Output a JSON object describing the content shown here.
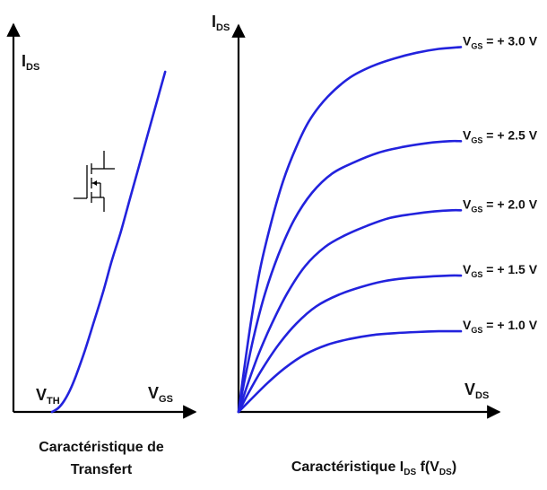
{
  "chart_data": [
    {
      "type": "line",
      "title": "Caractéristique de Transfert",
      "title_lines": [
        "Caractéristique de",
        "Transfert"
      ],
      "ylabel": {
        "main": "I",
        "sub": "DS"
      },
      "xlabel": {
        "main": "V",
        "sub": "GS"
      },
      "threshold_label": {
        "main": "V",
        "sub": "TH"
      },
      "icon": "mosfet-symbol-icon",
      "xlim": [
        0,
        10
      ],
      "ylim": [
        0,
        10
      ],
      "series": [
        {
          "x": [
            0,
            0.4,
            0.8,
            1.2,
            1.6,
            2.2,
            2.8,
            3.4,
            4.0,
            4.6,
            5.2,
            5.8,
            6.4,
            7.0,
            7.6
          ],
          "y": [
            0,
            0.1,
            0.3,
            0.6,
            1.0,
            1.7,
            2.5,
            3.3,
            4.2,
            5.0,
            5.9,
            6.8,
            7.7,
            8.6,
            9.5
          ],
          "color": "#2222dd"
        }
      ]
    },
    {
      "type": "line",
      "title": "",
      "caption": {
        "prefix": "Caractéristique I",
        "sub1": "DS",
        "mid": " f(V",
        "sub2": "DS",
        "suffix": ")"
      },
      "ylabel": {
        "main": "I",
        "sub": "DS"
      },
      "xlabel": {
        "main": "V",
        "sub": "DS"
      },
      "xlim": [
        0,
        10
      ],
      "ylim": [
        0,
        10
      ],
      "series": [
        {
          "name": "VGS = + 3.0 V",
          "label": {
            "main": "V",
            "sub": "GS",
            "text": " = + 3.0 V"
          },
          "color": "#2222dd",
          "x": [
            0,
            0.25,
            0.6,
            1.0,
            1.5,
            2.0,
            2.6,
            3.2,
            4.0,
            5.0,
            6.0,
            7.0,
            8.0,
            9.0,
            10.0
          ],
          "y": [
            0,
            1.1,
            2.5,
            3.8,
            5.0,
            6.0,
            6.9,
            7.6,
            8.2,
            8.7,
            9.0,
            9.2,
            9.35,
            9.45,
            9.5
          ]
        },
        {
          "name": "VGS = + 2.5 V",
          "label": {
            "main": "V",
            "sub": "GS",
            "text": " = + 2.5 V"
          },
          "color": "#2222dd",
          "x": [
            0,
            0.3,
            0.7,
            1.2,
            1.8,
            2.5,
            3.3,
            4.2,
            5.2,
            6.3,
            7.4,
            8.5,
            9.5,
            10.0
          ],
          "y": [
            0,
            0.9,
            2.0,
            3.1,
            4.1,
            5.0,
            5.7,
            6.2,
            6.5,
            6.75,
            6.9,
            7.0,
            7.05,
            7.05
          ]
        },
        {
          "name": "VGS = + 2.0 V",
          "label": {
            "main": "V",
            "sub": "GS",
            "text": " = + 2.0 V"
          },
          "color": "#2222dd",
          "x": [
            0,
            0.4,
            0.9,
            1.5,
            2.2,
            3.0,
            3.9,
            4.8,
            5.8,
            6.8,
            7.8,
            8.8,
            9.6,
            10.0
          ],
          "y": [
            0,
            0.7,
            1.5,
            2.3,
            3.1,
            3.8,
            4.3,
            4.6,
            4.85,
            5.05,
            5.15,
            5.22,
            5.25,
            5.25
          ]
        },
        {
          "name": "VGS = + 1.5 V",
          "label": {
            "main": "V",
            "sub": "GS",
            "text": " = + 1.5 V"
          },
          "color": "#2222dd",
          "x": [
            0,
            0.5,
            1.1,
            1.8,
            2.6,
            3.5,
            4.5,
            5.5,
            6.5,
            7.5,
            8.5,
            9.5,
            10.0
          ],
          "y": [
            0,
            0.55,
            1.15,
            1.75,
            2.3,
            2.75,
            3.05,
            3.25,
            3.4,
            3.48,
            3.52,
            3.55,
            3.55
          ]
        },
        {
          "name": "VGS = + 1.0 V",
          "label": {
            "main": "V",
            "sub": "GS",
            "text": " = + 1.0 V"
          },
          "color": "#2222dd",
          "x": [
            0,
            0.6,
            1.3,
            2.1,
            3.0,
            4.0,
            5.0,
            6.0,
            7.0,
            8.0,
            9.0,
            10.0
          ],
          "y": [
            0,
            0.35,
            0.75,
            1.15,
            1.5,
            1.75,
            1.9,
            2.0,
            2.05,
            2.08,
            2.1,
            2.1
          ]
        }
      ]
    }
  ]
}
